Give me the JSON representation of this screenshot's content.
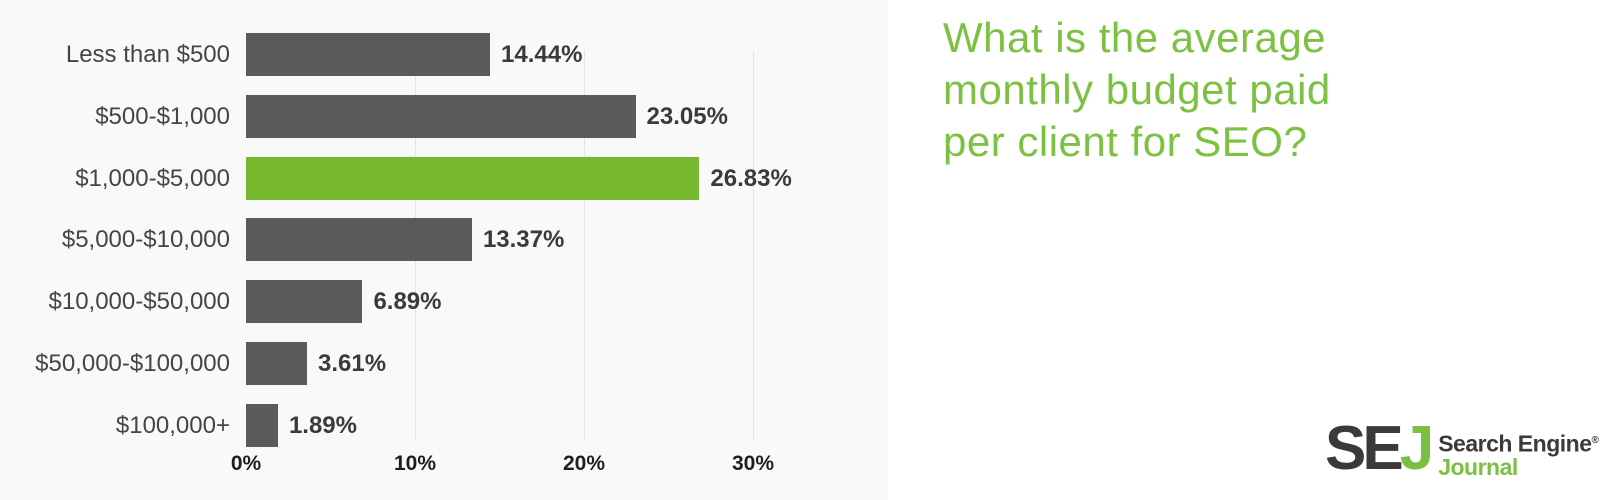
{
  "chart_data": {
    "type": "bar",
    "orientation": "horizontal",
    "title": "What is the average monthly budget paid per client for SEO?",
    "categories": [
      "Less than $500",
      "$500-$1,000",
      "$1,000-$5,000",
      "$5,000-$10,000",
      "$10,000-$50,000",
      "$50,000-$100,000",
      "$100,000+"
    ],
    "values": [
      14.44,
      23.05,
      26.83,
      13.37,
      6.89,
      3.61,
      1.89
    ],
    "value_labels": [
      "14.44%",
      "23.05%",
      "26.83%",
      "13.37%",
      "6.89%",
      "3.61%",
      "1.89%"
    ],
    "highlight_index": 2,
    "x_tick_labels": [
      "0%",
      "10%",
      "20%",
      "30%"
    ],
    "x_tick_values": [
      0,
      10,
      20,
      30
    ],
    "xlim": [
      0,
      35
    ],
    "grid": "vertical-lines-at-10-20-30",
    "legend": "none",
    "bar_color": "#5a5a58",
    "highlight_color": "#76b82e",
    "panel_background": "#f9f9f9"
  },
  "title_panel": {
    "title_lines": [
      "What is the average",
      "monthly budget paid",
      "per client for SEO?"
    ],
    "title_color": "#7cc142"
  },
  "logo": {
    "monogram_se": "SE",
    "monogram_j": "J",
    "line1": "Search Engine",
    "registered_mark": "®",
    "line2": "Journal",
    "dark_color": "#3b3a39",
    "green_color": "#7ac143"
  }
}
